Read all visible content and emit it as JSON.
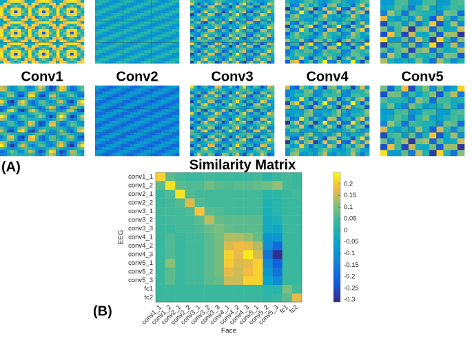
{
  "panel_a": {
    "label": "(A)",
    "layers": [
      "Conv1",
      "Conv2",
      "Conv3",
      "Conv4",
      "Conv5"
    ]
  },
  "panel_b_label": "(B)",
  "chart_data": {
    "type": "heatmap",
    "title": "Similarity Matrix",
    "x_label": "Face",
    "y_label": "EEG",
    "colormap": "parula",
    "x": [
      "conv1_1",
      "conv1_2",
      "conv2_1",
      "conv2_2",
      "conv3_1",
      "conv3_2",
      "conv3_3",
      "conv4_1",
      "conv4_2",
      "conv4_3",
      "conv5_1",
      "conv5_2",
      "conv5_3",
      "fc1",
      "fc2"
    ],
    "y": [
      "conv1_1",
      "conv1_2",
      "conv2_1",
      "conv2_2",
      "conv3_1",
      "conv3_2",
      "conv3_3",
      "conv4_1",
      "conv4_2",
      "conv4_3",
      "conv5_1",
      "conv5_2",
      "conv5_3",
      "fc1",
      "fc2"
    ],
    "values": [
      [
        0.2,
        0.05,
        0.03,
        0.02,
        0.02,
        0.03,
        0.02,
        0.02,
        0.02,
        0.02,
        0.03,
        0.0,
        0.02,
        0.03,
        0.02
      ],
      [
        0.05,
        0.22,
        0.05,
        0.04,
        0.04,
        0.07,
        0.05,
        0.04,
        0.05,
        0.05,
        0.06,
        0.07,
        0.1,
        0.03,
        0.02
      ],
      [
        0.02,
        0.04,
        0.22,
        0.04,
        0.03,
        0.03,
        0.03,
        0.03,
        0.03,
        0.03,
        0.03,
        0.0,
        0.01,
        0.02,
        0.03
      ],
      [
        0.02,
        0.03,
        0.04,
        0.15,
        0.04,
        0.03,
        0.03,
        0.03,
        0.03,
        0.03,
        0.03,
        -0.02,
        0.0,
        0.02,
        0.02
      ],
      [
        0.03,
        0.03,
        0.03,
        0.04,
        0.18,
        0.05,
        0.04,
        0.03,
        0.03,
        0.03,
        0.03,
        -0.03,
        0.0,
        0.02,
        0.02
      ],
      [
        0.02,
        0.03,
        0.03,
        0.03,
        0.05,
        0.13,
        0.06,
        0.05,
        0.05,
        0.05,
        0.05,
        -0.04,
        -0.02,
        0.02,
        0.02
      ],
      [
        0.02,
        0.02,
        0.03,
        0.03,
        0.04,
        0.06,
        0.08,
        0.06,
        0.05,
        0.05,
        0.05,
        -0.05,
        -0.05,
        0.02,
        0.02
      ],
      [
        0.02,
        0.04,
        0.02,
        0.03,
        0.03,
        0.05,
        0.07,
        0.12,
        0.12,
        0.1,
        0.06,
        -0.1,
        -0.1,
        0.02,
        0.02
      ],
      [
        0.02,
        0.04,
        0.02,
        0.03,
        0.03,
        0.05,
        0.07,
        0.15,
        0.17,
        0.16,
        0.12,
        -0.12,
        -0.2,
        0.02,
        0.02
      ],
      [
        0.02,
        0.04,
        0.02,
        0.03,
        0.03,
        0.05,
        0.07,
        0.2,
        0.16,
        0.23,
        0.15,
        -0.18,
        -0.3,
        0.02,
        0.02
      ],
      [
        0.02,
        0.09,
        0.02,
        0.03,
        0.03,
        0.05,
        0.07,
        0.19,
        0.15,
        0.16,
        0.2,
        -0.13,
        -0.22,
        0.02,
        0.02
      ],
      [
        0.02,
        0.05,
        0.02,
        0.03,
        0.03,
        0.05,
        0.07,
        0.16,
        0.14,
        0.17,
        0.2,
        -0.1,
        -0.18,
        0.02,
        0.02
      ],
      [
        0.02,
        0.05,
        0.02,
        0.03,
        0.03,
        0.05,
        0.06,
        0.14,
        0.14,
        0.2,
        0.2,
        -0.07,
        -0.13,
        0.02,
        0.02
      ],
      [
        0.02,
        0.02,
        0.02,
        0.02,
        0.02,
        0.02,
        0.02,
        0.02,
        0.02,
        0.02,
        0.02,
        0.0,
        0.0,
        0.08,
        0.03
      ],
      [
        0.02,
        0.02,
        0.02,
        0.02,
        0.02,
        0.02,
        0.02,
        0.02,
        0.02,
        0.02,
        0.02,
        0.01,
        0.02,
        0.05,
        0.16
      ]
    ],
    "zlim": [
      -0.31,
      0.25
    ],
    "zticks": [
      0.2,
      0.15,
      0.1,
      0.05,
      0,
      -0.05,
      -0.1,
      -0.15,
      -0.2,
      -0.25,
      -0.3
    ]
  }
}
